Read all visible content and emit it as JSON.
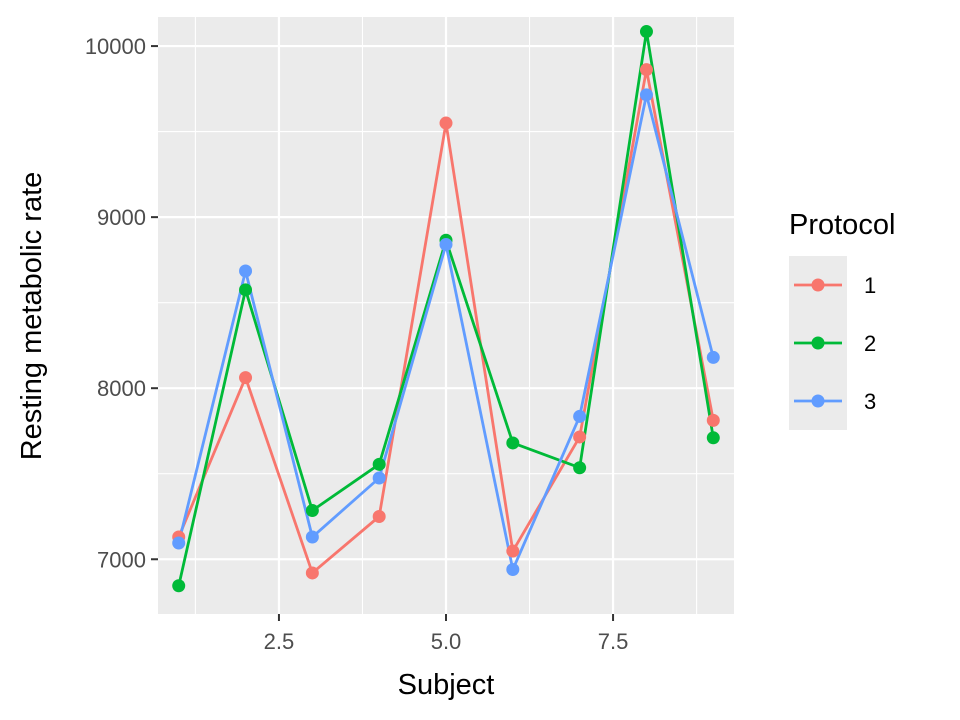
{
  "chart_data": {
    "type": "line",
    "xlabel": "Subject",
    "ylabel": "Resting metabolic rate",
    "xlim": [
      0.69,
      9.31
    ],
    "ylim": [
      6680,
      10170
    ],
    "x_ticks": [
      2.5,
      5.0,
      7.5
    ],
    "x_tick_labels": [
      "2.5",
      "5.0",
      "7.5"
    ],
    "y_ticks": [
      7000,
      8000,
      9000,
      10000
    ],
    "y_tick_labels": [
      "7000",
      "8000",
      "9000",
      "10000"
    ],
    "grid": true,
    "legend": {
      "title": "Protocol",
      "position": "right"
    },
    "x": [
      1,
      2,
      3,
      4,
      5,
      6,
      7,
      8,
      9
    ],
    "series": [
      {
        "name": "1",
        "color": "#F8766D",
        "values": [
          7130,
          8062,
          6920,
          7250,
          9550,
          7048,
          7715,
          9862,
          7812
        ]
      },
      {
        "name": "2",
        "color": "#00BA38",
        "values": [
          6845,
          8575,
          7285,
          7555,
          8865,
          7680,
          7535,
          10085,
          7710
        ]
      },
      {
        "name": "3",
        "color": "#619CFF",
        "values": [
          7095,
          8685,
          7130,
          7475,
          8840,
          6940,
          7835,
          9715,
          8180
        ]
      }
    ]
  }
}
